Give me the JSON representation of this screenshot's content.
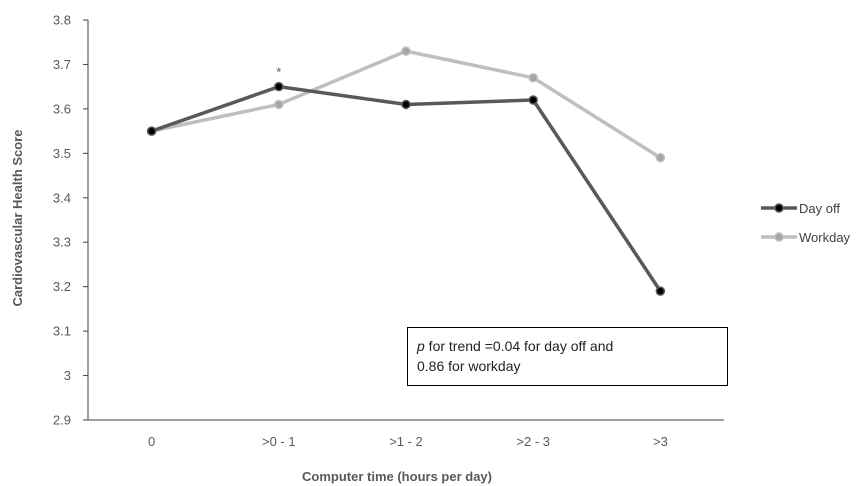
{
  "chart_data": {
    "type": "line",
    "xlabel": "Computer time (hours per day)",
    "ylabel": "Cardiovascular Health Score",
    "categories": [
      "0",
      ">0 - 1",
      ">1 - 2",
      ">2 - 3",
      ">3"
    ],
    "ylim": [
      2.9,
      3.8
    ],
    "yticks": [
      "2.9",
      "3",
      "3.1",
      "3.2",
      "3.3",
      "3.4",
      "3.5",
      "3.6",
      "3.7",
      "3.8"
    ],
    "series": [
      {
        "name": "Day off",
        "values": [
          3.55,
          3.65,
          3.61,
          3.62,
          3.19
        ],
        "color": "#595959",
        "marker_color": "#000000"
      },
      {
        "name": "Workday",
        "values": [
          3.55,
          3.61,
          3.73,
          3.67,
          3.49
        ],
        "color": "#bfbfbf",
        "marker_color": "#a6a6a6"
      }
    ],
    "legend_position": "right",
    "grid": false,
    "annotations": [
      {
        "text": "*",
        "category": ">0 - 1",
        "series": "Day off"
      }
    ],
    "note": {
      "p_symbol": "p",
      "line1": " for trend =0.04 for day off and",
      "line2": "0.86 for workday"
    }
  }
}
